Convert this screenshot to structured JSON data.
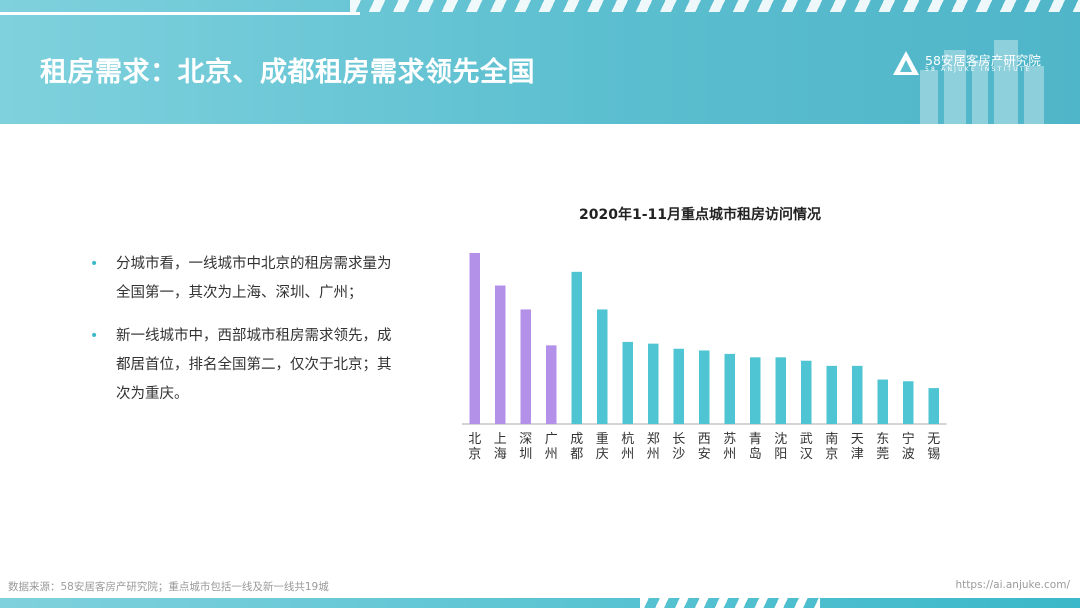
{
  "header": {
    "title": "租房需求：北京、成都租房需求领先全国",
    "logo_name": "58安居客房产研究院",
    "logo_sub": "58 ANJUKE INSTITUTE"
  },
  "bullets": [
    "分城市看，一线城市中北京的租房需求量为全国第一，其次为上海、深圳、广州；",
    "新一线城市中，西部城市租房需求领先，成都居首位，排名全国第二，仅次于北京；其次为重庆。"
  ],
  "chart_data": {
    "type": "bar",
    "title": "2020年1-11月重点城市租房访问情况",
    "categories": [
      "北京",
      "上海",
      "深圳",
      "广州",
      "成都",
      "重庆",
      "杭州",
      "郑州",
      "长沙",
      "西安",
      "苏州",
      "青岛",
      "沈阳",
      "武汉",
      "南京",
      "天津",
      "东莞",
      "宁波",
      "无锡"
    ],
    "values": [
      100,
      81,
      67,
      46,
      89,
      67,
      48,
      47,
      44,
      43,
      41,
      39,
      39,
      37,
      34,
      34,
      26,
      25,
      21
    ],
    "ylim": [
      0,
      100
    ],
    "grid": false,
    "colors": {
      "first_tier": "#b491e8",
      "new_first_tier": "#4fc5d3",
      "axis": "#aaaaaa",
      "label": "#333333"
    },
    "first_tier_count": 4
  },
  "footer": {
    "source": "数据来源：58安居客房产研究院；重点城市包括一线及新一线共19城",
    "url": "https://ai.anjuke.com/"
  }
}
